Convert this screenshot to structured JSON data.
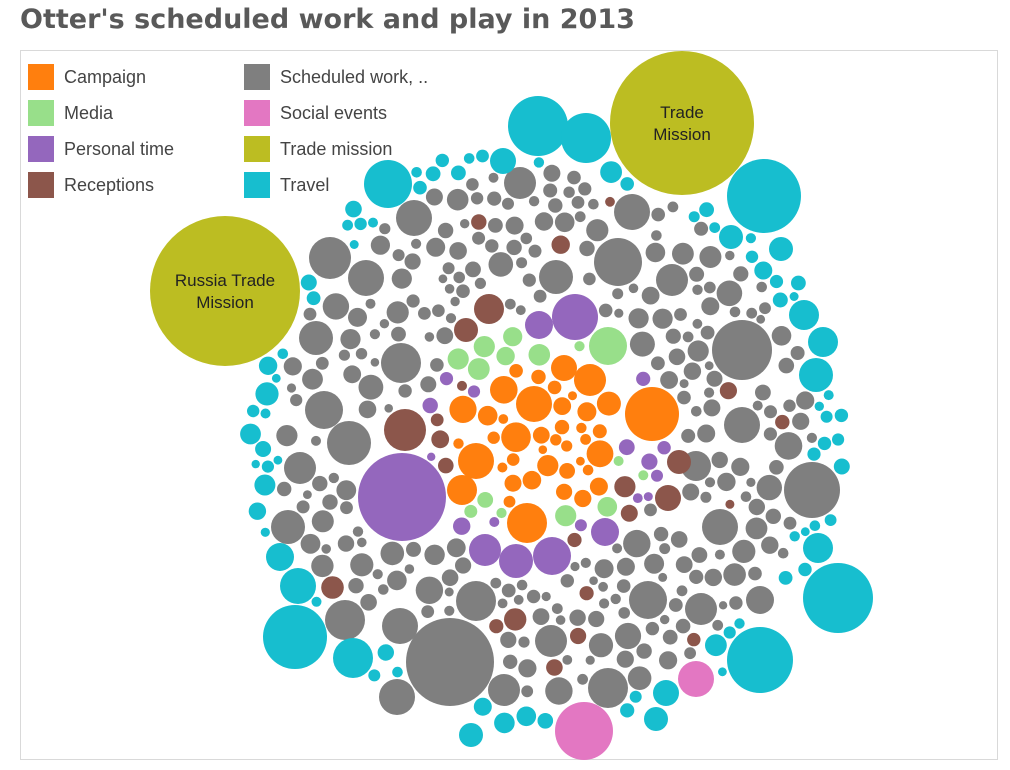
{
  "chart_data": {
    "type": "packed-bubble",
    "title": "Otter's scheduled work and play in 2013",
    "legend_position": "top-left",
    "legend": [
      {
        "key": "campaign",
        "label": "Campaign",
        "color": "#ff7f0e"
      },
      {
        "key": "work",
        "label": "Scheduled work, ..",
        "color": "#7f7f7f"
      },
      {
        "key": "media",
        "label": "Media",
        "color": "#98df8a"
      },
      {
        "key": "social",
        "label": "Social events",
        "color": "#e377c2"
      },
      {
        "key": "personal",
        "label": "Personal time",
        "color": "#9467bd"
      },
      {
        "key": "trade",
        "label": "Trade mission",
        "color": "#bcbd22"
      },
      {
        "key": "receptions",
        "label": "Receptions",
        "color": "#8c564b"
      },
      {
        "key": "travel",
        "label": "Travel",
        "color": "#17becf"
      }
    ],
    "labeled_bubbles": [
      {
        "category": "trade",
        "lines": [
          "Trade",
          "Mission"
        ]
      },
      {
        "category": "trade",
        "lines": [
          "Russia Trade",
          "Mission"
        ]
      }
    ]
  }
}
